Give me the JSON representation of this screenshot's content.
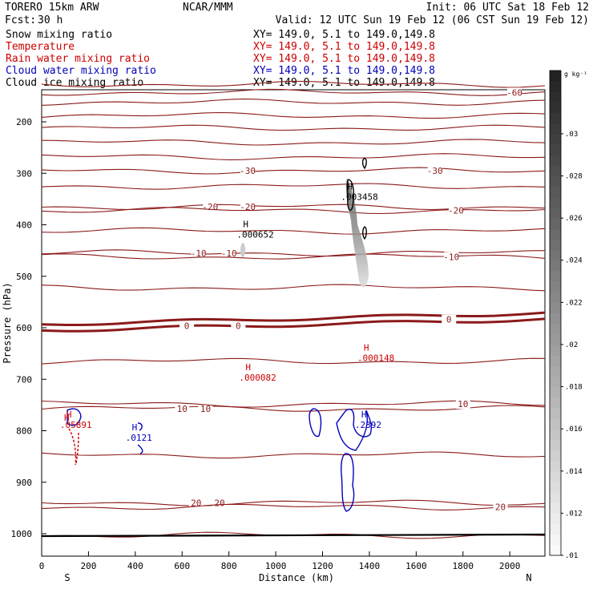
{
  "header": {
    "model": "TORERO  15km ARW",
    "org": "NCAR/MMM",
    "init": "Init: 06 UTC Sat 18 Feb 12",
    "fcst_label": "Fcst:",
    "fcst_value": "30 h",
    "valid": "Valid: 12 UTC Sun 19 Feb 12 (06 CST Sun 19 Feb 12)"
  },
  "fields": [
    {
      "name": "Snow mixing ratio",
      "xy": "XY= 149.0,  5.1 to 149.0,149.8",
      "color": "#000000",
      "xycolor": "#000000"
    },
    {
      "name": "Temperature",
      "xy": "XY= 149.0,  5.1 to 149.0,149.8",
      "color": "#cc0000",
      "xycolor": "#cc0000"
    },
    {
      "name": "Rain water mixing ratio",
      "xy": "XY= 149.0,  5.1 to 149.0,149.8",
      "color": "#cc0000",
      "xycolor": "#cc0000"
    },
    {
      "name": "Cloud water mixing ratio",
      "xy": "XY= 149.0,  5.1 to 149.0,149.8",
      "color": "#0000bb",
      "xycolor": "#0000bb"
    },
    {
      "name": "Cloud ice mixing ratio",
      "xy": "XY= 149.0,  5.1 to 149.0,149.8",
      "color": "#000000",
      "xycolor": "#000000"
    }
  ],
  "chart_data": {
    "type": "contour-cross-section",
    "xlabel": "Distance (km)",
    "ylabel": "Pressure (hPa)",
    "xlim": [
      0,
      2150
    ],
    "ylim": [
      1050,
      100
    ],
    "x_ticks": [
      0,
      200,
      400,
      600,
      800,
      1000,
      1200,
      1400,
      1600,
      1800,
      2000
    ],
    "y_ticks": [
      200,
      300,
      400,
      500,
      600,
      700,
      800,
      900,
      1000
    ],
    "left_end_label": "S",
    "right_end_label": "N",
    "colorbar": {
      "unit": "g kg⁻¹",
      "min": 0.01,
      "max": 0.033,
      "ticks": [
        ".01",
        ".012",
        ".014",
        ".016",
        ".018",
        ".02",
        ".022",
        ".024",
        ".026",
        ".028",
        ".03"
      ],
      "tick_values": [
        0.01,
        0.012,
        0.014,
        0.016,
        0.018,
        0.02,
        0.022,
        0.024,
        0.026,
        0.028,
        0.03
      ]
    },
    "temperature_contours": [
      {
        "p": 127,
        "label": null
      },
      {
        "p": 143,
        "label": "-60",
        "lx": 2020
      },
      {
        "p": 162,
        "label": null
      },
      {
        "p": 188,
        "label": null
      },
      {
        "p": 212,
        "label": null
      },
      {
        "p": 240,
        "label": null
      },
      {
        "p": 268,
        "label": null
      },
      {
        "p": 295,
        "label": "-30",
        "lx": 880
      },
      {
        "p": 295,
        "label": "-30",
        "lx": 1680
      },
      {
        "p": 325,
        "label": null
      },
      {
        "p": 365,
        "label": "-20",
        "lx": 720
      },
      {
        "p": 365,
        "label": "-20",
        "lx": 880
      },
      {
        "p": 372,
        "label": "-20",
        "lx": 1770
      },
      {
        "p": 412,
        "label": null
      },
      {
        "p": 455,
        "label": "-10",
        "lx": 670
      },
      {
        "p": 455,
        "label": "-10",
        "lx": 800
      },
      {
        "p": 462,
        "label": "-10",
        "lx": 1750
      },
      {
        "p": 522,
        "label": null
      },
      {
        "p": 596,
        "label": "0",
        "lx": 620,
        "bold": true
      },
      {
        "p": 596,
        "label": "0",
        "lx": 840,
        "bold": true
      },
      {
        "p": 584,
        "label": "0",
        "lx": 1740,
        "bold": true
      },
      {
        "p": 665,
        "label": null
      },
      {
        "p": 757,
        "label": "10",
        "lx": 600
      },
      {
        "p": 757,
        "label": "10",
        "lx": 700
      },
      {
        "p": 748,
        "label": "10",
        "lx": 1800
      },
      {
        "p": 847,
        "label": null
      },
      {
        "p": 940,
        "label": "20",
        "lx": 660
      },
      {
        "p": 940,
        "label": "20",
        "lx": 760
      },
      {
        "p": 948,
        "label": "20",
        "lx": 1960
      },
      {
        "p": 1003,
        "label": null
      }
    ],
    "maxima_labels": [
      {
        "x": 1340,
        "p": 347,
        "value": ".003458",
        "color": "#000000"
      },
      {
        "x": 895,
        "p": 420,
        "value": ".000652",
        "color": "#000000"
      },
      {
        "x": 1410,
        "p": 660,
        "value": ".000148",
        "color": "#cc0000"
      },
      {
        "x": 905,
        "p": 698,
        "value": ".000082",
        "color": "#cc0000"
      },
      {
        "x": 140,
        "p": 790,
        "value": ".05891",
        "color": "#cc0000"
      },
      {
        "x": 420,
        "p": 815,
        "value": ".0121",
        "color": "#0000bb"
      },
      {
        "x": 1400,
        "p": 790,
        "value": ".2392",
        "color": "#0000bb"
      }
    ]
  }
}
